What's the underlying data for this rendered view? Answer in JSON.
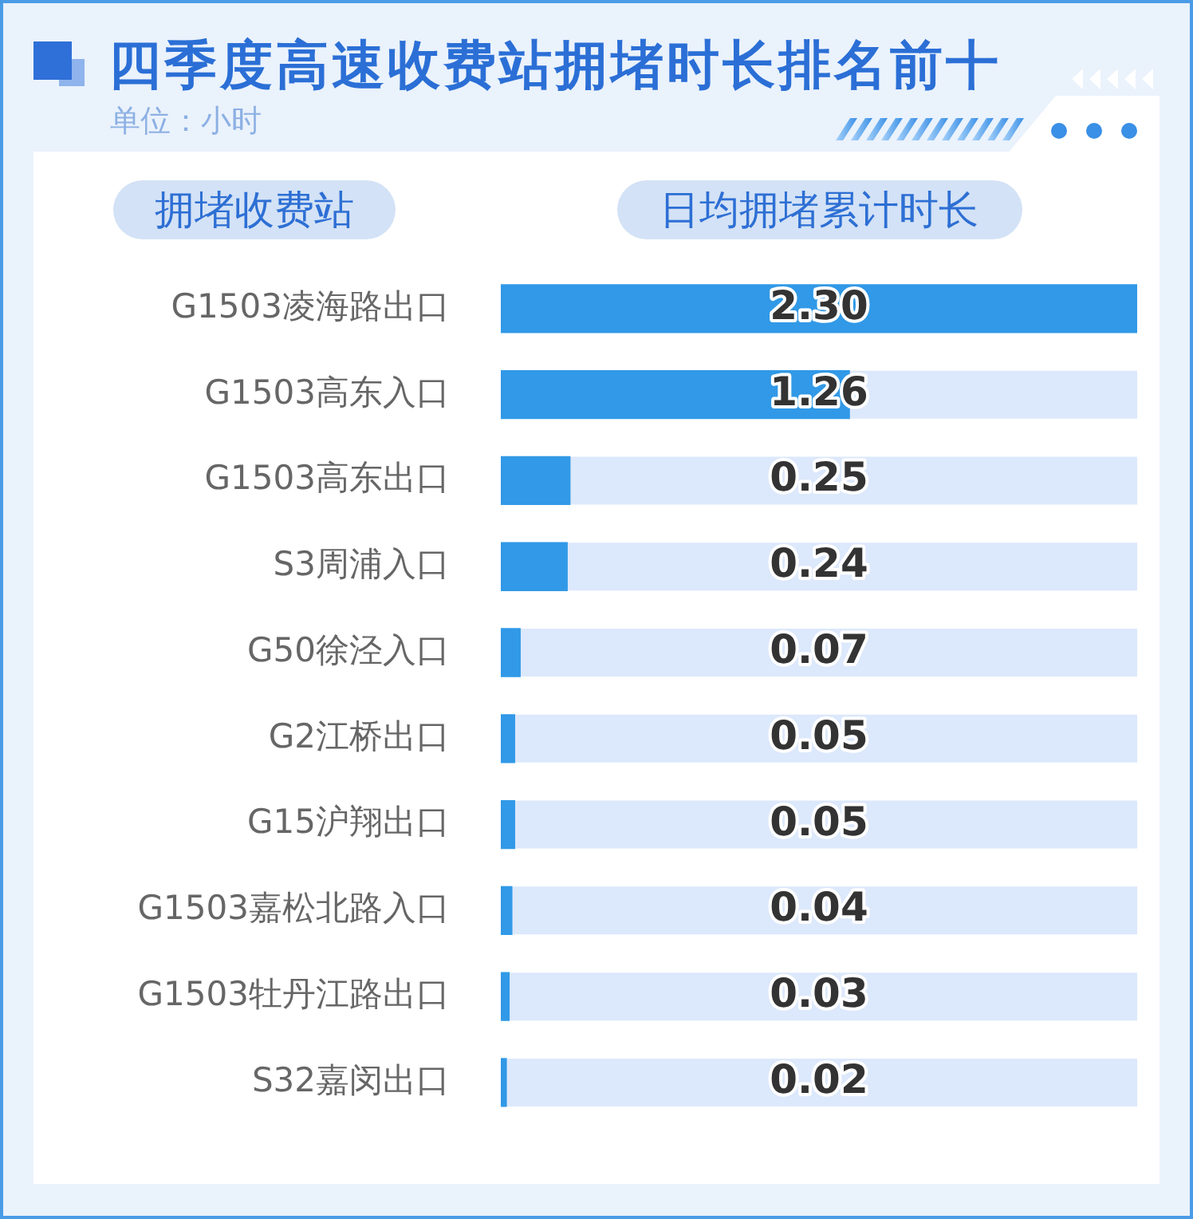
{
  "chart_data": {
    "type": "bar",
    "orientation": "horizontal",
    "title": "四季度高速收费站拥堵时长排名前十",
    "subtitle": "单位：小时",
    "ylabel": "拥堵收费站",
    "xlabel": "日均拥堵累计时长",
    "categories": [
      "G1503凌海路出口",
      "G1503高东入口",
      "G1503高东出口",
      "S3周浦入口",
      "G50徐泾入口",
      "G2江桥出口",
      "G15沪翔出口",
      "G1503嘉松北路入口",
      "G1503牡丹江路出口",
      "S32嘉闵出口"
    ],
    "values": [
      2.3,
      1.26,
      0.25,
      0.24,
      0.07,
      0.05,
      0.05,
      0.04,
      0.03,
      0.02
    ],
    "value_labels": [
      "2.30",
      "1.26",
      "0.25",
      "0.24",
      "0.07",
      "0.05",
      "0.05",
      "0.04",
      "0.03",
      "0.02"
    ],
    "color": "#3199e7",
    "xlim": [
      0,
      2.3
    ],
    "tick_labels": "y"
  }
}
